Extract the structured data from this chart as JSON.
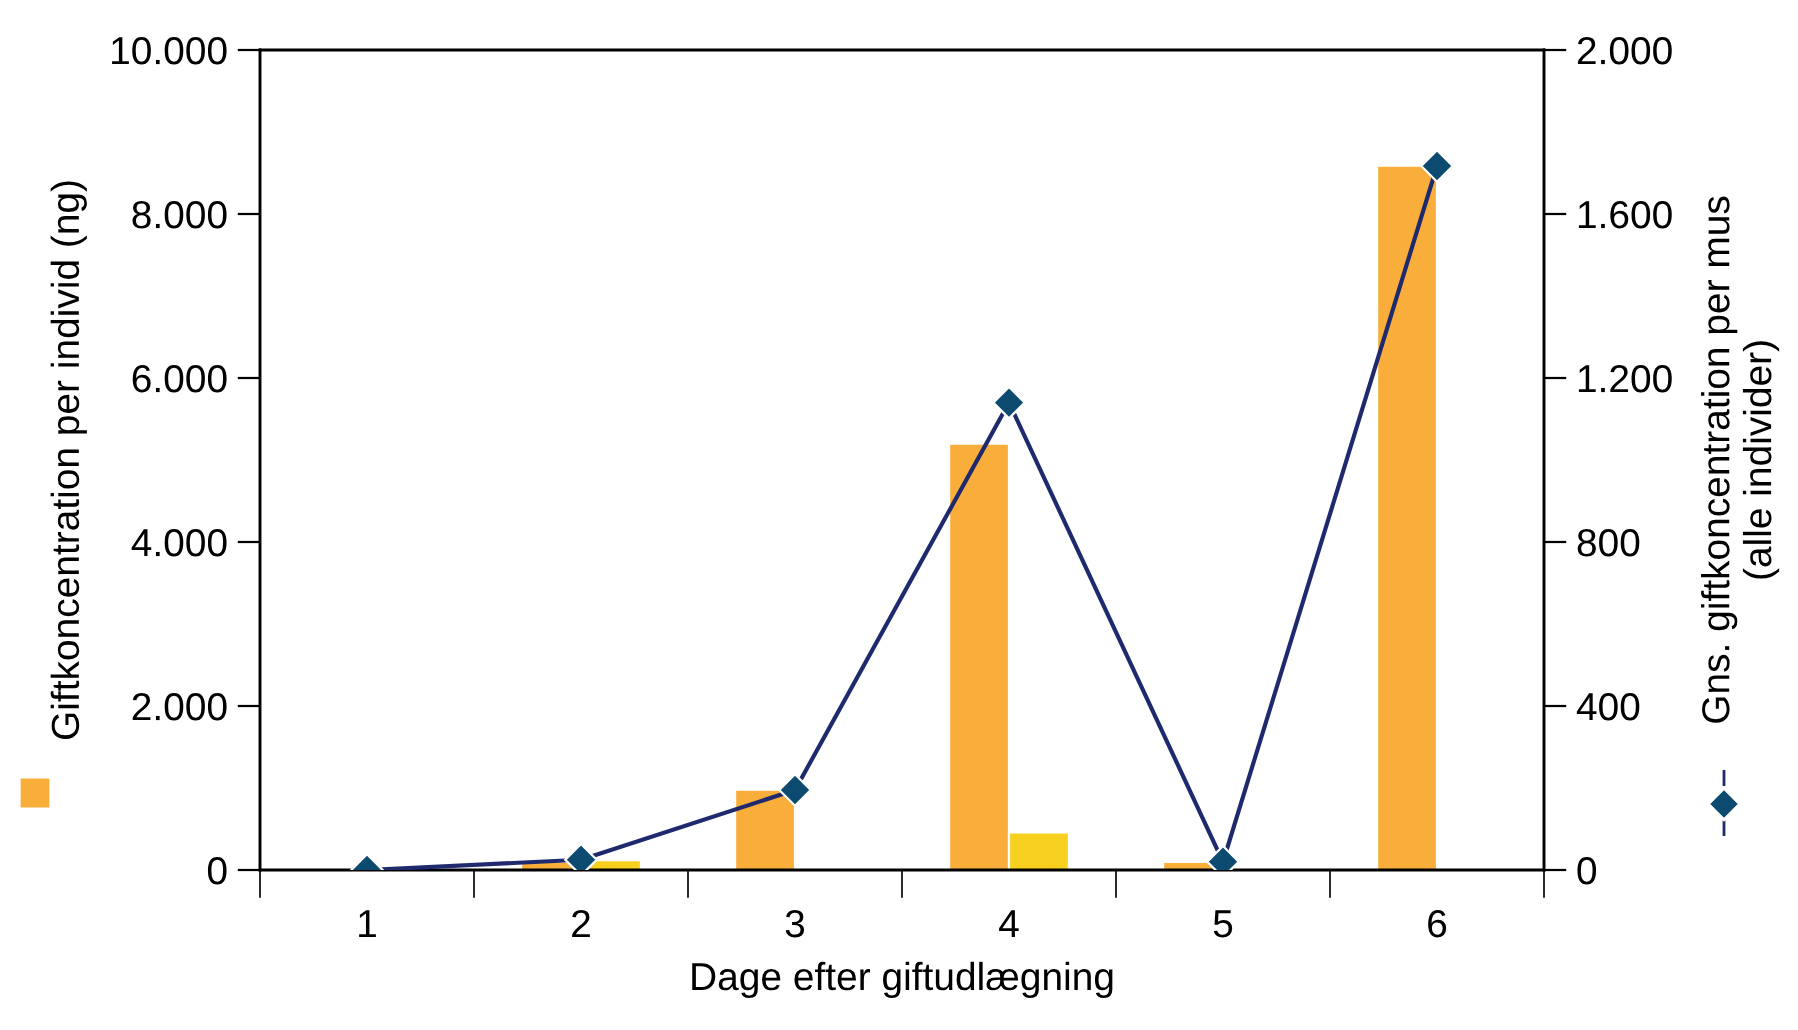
{
  "chart_data": {
    "type": "bar",
    "xlabel": "Dage efter giftudlægning",
    "ylabel": "Giftkoncentration per individ (ng)",
    "y2label": "Gns. giftkoncentration per mus\n(alle individer)",
    "categories": [
      "1",
      "2",
      "3",
      "4",
      "5",
      "6"
    ],
    "series": [
      {
        "color": "#f9ae3b",
        "values": [
          null,
          100,
          980,
          5200,
          100,
          8590
        ]
      },
      {
        "color": "#f8d020",
        "values": [
          null,
          120,
          null,
          460,
          null,
          null
        ]
      },
      {
        "type": "line",
        "axis": "y2",
        "color": "#1f2a6e",
        "marker": "diamond",
        "values": [
          0,
          25,
          195,
          1140,
          20,
          1717
        ]
      }
    ],
    "ylim": [
      0,
      10000
    ],
    "yticks": [
      {
        "value": 0,
        "label": "0"
      },
      {
        "value": 2000,
        "label": "2.000"
      },
      {
        "value": 4000,
        "label": "4.000"
      },
      {
        "value": 6000,
        "label": "6.000"
      },
      {
        "value": 8000,
        "label": "8.000"
      },
      {
        "value": 10000,
        "label": "10.000"
      }
    ],
    "y2lim": [
      0,
      2000
    ],
    "y2ticks": [
      {
        "value": 0,
        "label": "0"
      },
      {
        "value": 400,
        "label": "400"
      },
      {
        "value": 800,
        "label": "800"
      },
      {
        "value": 1200,
        "label": "1.200"
      },
      {
        "value": 1600,
        "label": "1.600"
      },
      {
        "value": 2000,
        "label": "2.000"
      }
    ],
    "grid": false,
    "legend": false
  }
}
